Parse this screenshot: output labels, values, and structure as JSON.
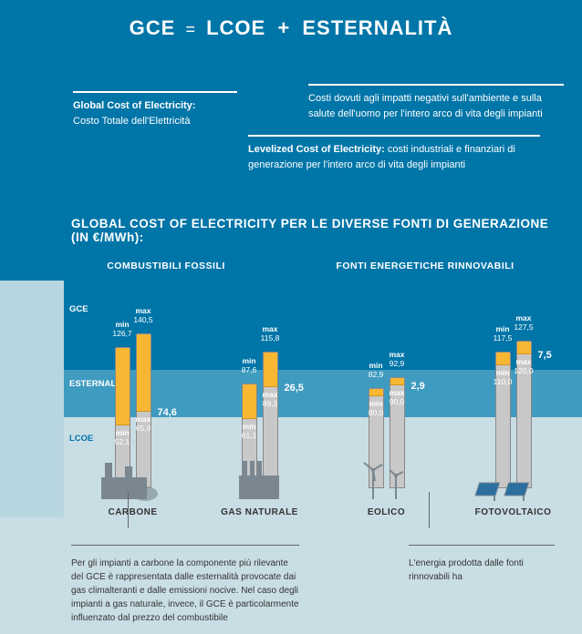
{
  "header": {
    "gce": "GCE",
    "eq": "=",
    "lcoe": "LCOE",
    "plus": "+",
    "ext": "ESTERNALITÀ"
  },
  "defs": {
    "gce": {
      "term": "Global Cost of Electricity:",
      "desc": "Costo Totale dell'Elettricità"
    },
    "lcoe": {
      "term": "Levelized Cost of Electricity:",
      "desc": "costi industriali e finanziari di generazione per l'intero arco di vita degli impianti"
    },
    "ext": {
      "desc": "Costi dovuti agli impatti negativi sull'ambiente e sulla salute dell'uomo per l'intero arco di vita degli impianti"
    }
  },
  "section2": {
    "title": "GLOBAL COST OF ELECTRICITY PER LE DIVERSE FONTI DI GENERAZIONE (IN €/MWh):",
    "catFossil": "COMBUSTIBILI FOSSILI",
    "catRenew": "FONTI ENERGETICHE RINNOVABILI"
  },
  "bands": {
    "gce": "GCE",
    "ext": "ESTERNALITÀ",
    "lcoe": "LCOE"
  },
  "minmax": {
    "min": "min",
    "max": "max"
  },
  "sources": [
    {
      "name": "CARBONE",
      "gce_min": "126,7",
      "gce_max": "140,5",
      "lcoe_min": "52,1",
      "lcoe_max": "65,9",
      "ext": "74,6",
      "h_min": 155,
      "h_max": 170,
      "top_min": 85,
      "top_max": 85
    },
    {
      "name": "GAS NATURALE",
      "gce_min": "87,6",
      "gce_max": "115,8",
      "lcoe_min": "61,1",
      "lcoe_max": "89,3",
      "ext": "26,5",
      "h_min": 115,
      "h_max": 150,
      "top_min": 38,
      "top_max": 38
    },
    {
      "name": "EOLICO",
      "gce_min": "82,9",
      "gce_max": "92,9",
      "lcoe_min": "80,0",
      "lcoe_max": "90,0",
      "ext": "2,9",
      "h_min": 110,
      "h_max": 122,
      "top_min": 8,
      "top_max": 8
    },
    {
      "name": "FOTOVOLTAICO",
      "gce_min": "117,5",
      "gce_max": "127,5",
      "lcoe_min": "110,0",
      "lcoe_max": "120,0",
      "ext": "7,5",
      "h_min": 150,
      "h_max": 162,
      "top_min": 14,
      "top_max": 14
    }
  ],
  "footer": {
    "leftText": "Per gli impianti a carbone la componente più rilevante del GCE è rappresentata dalle esternalità provocate dai gas climalteranti e dalle emissioni nocive. Nel caso degli impianti a gas naturale, invece, il GCE è particolarmente influenzato dal prezzo del combustibile",
    "rightText": "L'energia prodotta dalle fonti rinnovabili ha"
  },
  "colors": {
    "bgMain": "#0075a8",
    "bandExt": "#3f9bbf",
    "bandLcoe": "#c9dde5",
    "barGrey": "#c8c8c8",
    "barTop": "#f7b733"
  }
}
